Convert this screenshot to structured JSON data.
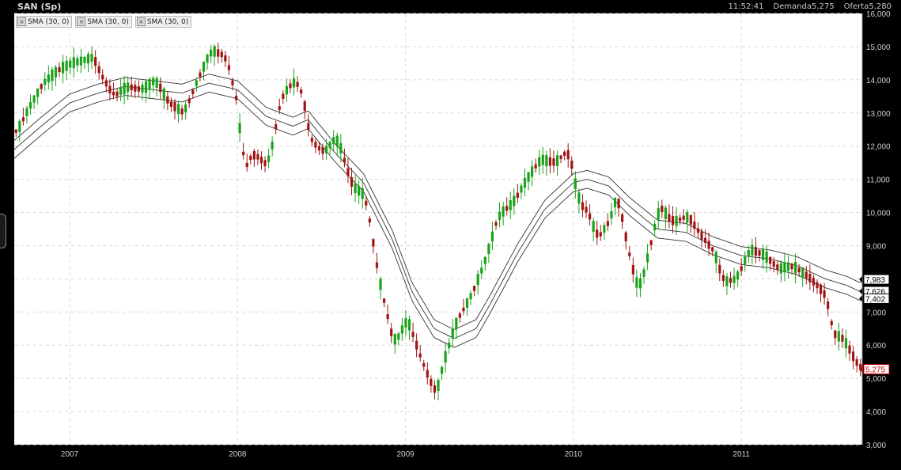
{
  "header": {
    "title": "SAN (Sp)",
    "time": "11:52:41",
    "bid_label": "Demanda",
    "bid_value": "5,275",
    "ask_label": "Oferta",
    "ask_value": "5,280"
  },
  "legend": [
    {
      "label": "SMA (30, 0)"
    },
    {
      "label": "SMA (30, 0)"
    },
    {
      "label": "SMA (30, 0)"
    }
  ],
  "chart_data": {
    "type": "candlestick",
    "title": "SAN (Sp)",
    "y_axis_side": "right",
    "ylim": [
      3.0,
      16.0
    ],
    "y_ticks": [
      "16,000",
      "15,000",
      "14,000",
      "13,000",
      "12,000",
      "11,000",
      "10,000",
      "9,000",
      "8,000",
      "7,000",
      "6,000",
      "5,000",
      "4,000",
      "3,000"
    ],
    "xlim": [
      2006.67,
      2011.72
    ],
    "x_ticks": [
      {
        "label": "2007",
        "x": 2007.0
      },
      {
        "label": "2008",
        "x": 2008.0
      },
      {
        "label": "2009",
        "x": 2009.0
      },
      {
        "label": "2010",
        "x": 2010.0
      },
      {
        "label": "2011",
        "x": 2011.0
      }
    ],
    "grid": true,
    "colors": {
      "up": "#1aa31a",
      "down": "#a01414",
      "sma": "#333333",
      "grid": "#d9d9d9"
    },
    "close_series": [
      [
        2006.67,
        12.4
      ],
      [
        2006.75,
        13.2
      ],
      [
        2006.83,
        13.9
      ],
      [
        2006.92,
        14.3
      ],
      [
        2007.0,
        14.5
      ],
      [
        2007.08,
        14.6
      ],
      [
        2007.13,
        14.7
      ],
      [
        2007.17,
        14.2
      ],
      [
        2007.25,
        13.5
      ],
      [
        2007.33,
        13.8
      ],
      [
        2007.42,
        13.7
      ],
      [
        2007.5,
        14.0
      ],
      [
        2007.58,
        13.3
      ],
      [
        2007.67,
        13.0
      ],
      [
        2007.75,
        14.0
      ],
      [
        2007.83,
        14.9
      ],
      [
        2007.92,
        14.7
      ],
      [
        2008.0,
        13.0
      ],
      [
        2008.02,
        11.2
      ],
      [
        2008.08,
        11.8
      ],
      [
        2008.17,
        11.4
      ],
      [
        2008.25,
        13.5
      ],
      [
        2008.33,
        14.0
      ],
      [
        2008.38,
        13.5
      ],
      [
        2008.42,
        12.2
      ],
      [
        2008.5,
        11.8
      ],
      [
        2008.58,
        12.3
      ],
      [
        2008.67,
        10.8
      ],
      [
        2008.75,
        10.5
      ],
      [
        2008.83,
        8.0
      ],
      [
        2008.92,
        6.0
      ],
      [
        2009.0,
        6.8
      ],
      [
        2009.08,
        5.6
      ],
      [
        2009.17,
        4.5
      ],
      [
        2009.21,
        5.4
      ],
      [
        2009.29,
        6.7
      ],
      [
        2009.38,
        7.5
      ],
      [
        2009.46,
        8.5
      ],
      [
        2009.54,
        9.9
      ],
      [
        2009.63,
        10.3
      ],
      [
        2009.71,
        11.0
      ],
      [
        2009.79,
        11.6
      ],
      [
        2009.88,
        11.5
      ],
      [
        2009.96,
        11.9
      ],
      [
        2010.02,
        10.3
      ],
      [
        2010.08,
        10.0
      ],
      [
        2010.13,
        9.2
      ],
      [
        2010.21,
        9.8
      ],
      [
        2010.25,
        10.6
      ],
      [
        2010.29,
        9.5
      ],
      [
        2010.33,
        8.5
      ],
      [
        2010.38,
        7.6
      ],
      [
        2010.46,
        9.3
      ],
      [
        2010.5,
        10.2
      ],
      [
        2010.58,
        9.7
      ],
      [
        2010.67,
        9.9
      ],
      [
        2010.75,
        9.3
      ],
      [
        2010.83,
        8.8
      ],
      [
        2010.88,
        7.9
      ],
      [
        2010.96,
        8.0
      ],
      [
        2011.04,
        8.9
      ],
      [
        2011.13,
        8.7
      ],
      [
        2011.21,
        8.3
      ],
      [
        2011.29,
        8.4
      ],
      [
        2011.38,
        8.1
      ],
      [
        2011.46,
        7.7
      ],
      [
        2011.5,
        7.4
      ],
      [
        2011.54,
        6.2
      ],
      [
        2011.58,
        6.3
      ],
      [
        2011.63,
        5.9
      ],
      [
        2011.67,
        5.5
      ],
      [
        2011.7,
        5.28
      ]
    ],
    "sma_center_series": [
      [
        2006.67,
        11.9
      ],
      [
        2006.83,
        12.6
      ],
      [
        2007.0,
        13.3
      ],
      [
        2007.17,
        13.6
      ],
      [
        2007.33,
        13.8
      ],
      [
        2007.5,
        13.7
      ],
      [
        2007.67,
        13.6
      ],
      [
        2007.83,
        13.9
      ],
      [
        2008.0,
        13.7
      ],
      [
        2008.17,
        12.9
      ],
      [
        2008.33,
        12.6
      ],
      [
        2008.42,
        12.8
      ],
      [
        2008.58,
        11.8
      ],
      [
        2008.75,
        10.9
      ],
      [
        2008.92,
        9.2
      ],
      [
        2009.04,
        7.6
      ],
      [
        2009.17,
        6.5
      ],
      [
        2009.29,
        6.2
      ],
      [
        2009.42,
        6.5
      ],
      [
        2009.5,
        7.2
      ],
      [
        2009.67,
        8.8
      ],
      [
        2009.83,
        10.1
      ],
      [
        2010.0,
        10.9
      ],
      [
        2010.08,
        11.0
      ],
      [
        2010.21,
        10.8
      ],
      [
        2010.33,
        10.2
      ],
      [
        2010.5,
        9.5
      ],
      [
        2010.67,
        9.4
      ],
      [
        2010.83,
        9.0
      ],
      [
        2011.0,
        8.7
      ],
      [
        2011.17,
        8.6
      ],
      [
        2011.33,
        8.4
      ],
      [
        2011.5,
        8.0
      ],
      [
        2011.63,
        7.8
      ],
      [
        2011.7,
        7.63
      ]
    ],
    "sma_band_offset": 0.27,
    "candles": {
      "open_close_spread": 0.35,
      "wick": 0.3,
      "count": 235
    },
    "last_values": [
      {
        "label": "7,983",
        "value": 7.983,
        "style": "black"
      },
      {
        "label": "7,626",
        "value": 7.626,
        "style": "black"
      },
      {
        "label": "7,402",
        "value": 7.402,
        "style": "black"
      },
      {
        "label": "5,275",
        "value": 5.275,
        "style": "red"
      }
    ]
  }
}
